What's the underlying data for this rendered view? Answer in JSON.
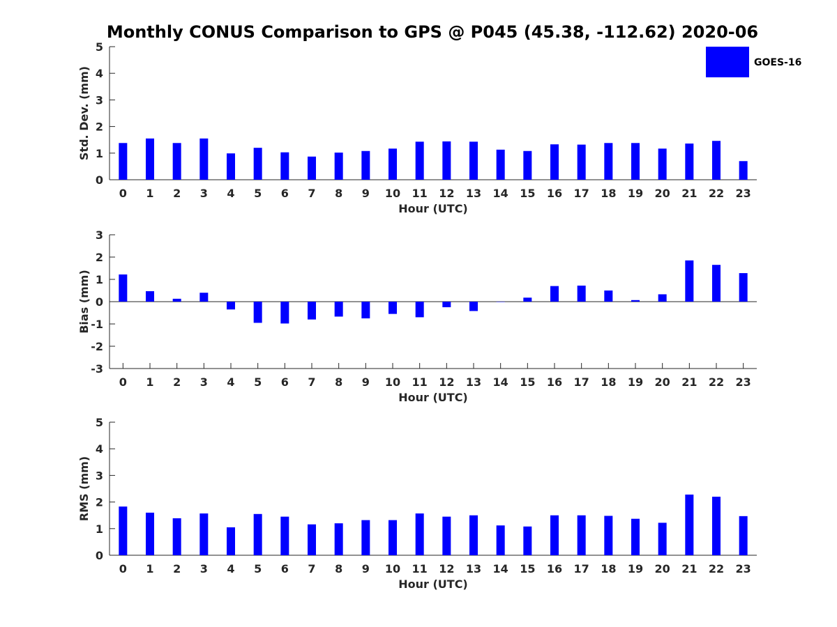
{
  "title": "Monthly CONUS Comparison to GPS @ P045 (45.38, -112.62) 2020-06",
  "legend": {
    "label": "GOES-16",
    "color": "#0000ff"
  },
  "chart_data": [
    {
      "type": "bar",
      "name": "std-dev",
      "series_name": "GOES-16",
      "color": "#0000ff",
      "xlabel": "Hour (UTC)",
      "ylabel": "Std. Dev. (mm)",
      "categories": [
        "0",
        "1",
        "2",
        "3",
        "4",
        "5",
        "6",
        "7",
        "8",
        "9",
        "10",
        "11",
        "12",
        "13",
        "14",
        "15",
        "16",
        "17",
        "18",
        "19",
        "20",
        "21",
        "22",
        "23"
      ],
      "values": [
        1.38,
        1.55,
        1.38,
        1.55,
        0.99,
        1.2,
        1.03,
        0.87,
        1.02,
        1.08,
        1.17,
        1.43,
        1.44,
        1.43,
        1.13,
        1.08,
        1.33,
        1.32,
        1.38,
        1.38,
        1.17,
        1.36,
        1.46,
        0.7
      ],
      "ylim": [
        0,
        5
      ],
      "yticks": [
        0,
        1,
        2,
        3,
        4,
        5
      ]
    },
    {
      "type": "bar",
      "name": "bias",
      "series_name": "GOES-16",
      "color": "#0000ff",
      "xlabel": "Hour (UTC)",
      "ylabel": "Bias (mm)",
      "categories": [
        "0",
        "1",
        "2",
        "3",
        "4",
        "5",
        "6",
        "7",
        "8",
        "9",
        "10",
        "11",
        "12",
        "13",
        "14",
        "15",
        "16",
        "17",
        "18",
        "19",
        "20",
        "21",
        "22",
        "23"
      ],
      "values": [
        1.22,
        0.47,
        0.13,
        0.4,
        -0.35,
        -0.95,
        -0.98,
        -0.8,
        -0.67,
        -0.75,
        -0.55,
        -0.7,
        -0.25,
        -0.42,
        0.0,
        0.18,
        0.7,
        0.72,
        0.5,
        0.07,
        0.33,
        1.85,
        1.65,
        1.28
      ],
      "ylim": [
        -3,
        3
      ],
      "yticks": [
        -3,
        -2,
        -1,
        0,
        1,
        2,
        3
      ]
    },
    {
      "type": "bar",
      "name": "rms",
      "series_name": "GOES-16",
      "color": "#0000ff",
      "xlabel": "Hour (UTC)",
      "ylabel": "RMS (mm)",
      "categories": [
        "0",
        "1",
        "2",
        "3",
        "4",
        "5",
        "6",
        "7",
        "8",
        "9",
        "10",
        "11",
        "12",
        "13",
        "14",
        "15",
        "16",
        "17",
        "18",
        "19",
        "20",
        "21",
        "22",
        "23"
      ],
      "values": [
        1.83,
        1.6,
        1.39,
        1.57,
        1.05,
        1.55,
        1.45,
        1.16,
        1.2,
        1.32,
        1.32,
        1.57,
        1.45,
        1.5,
        1.12,
        1.08,
        1.5,
        1.5,
        1.48,
        1.37,
        1.22,
        2.28,
        2.2,
        1.47
      ],
      "ylim": [
        0,
        5
      ],
      "yticks": [
        0,
        1,
        2,
        3,
        4,
        5
      ]
    }
  ]
}
